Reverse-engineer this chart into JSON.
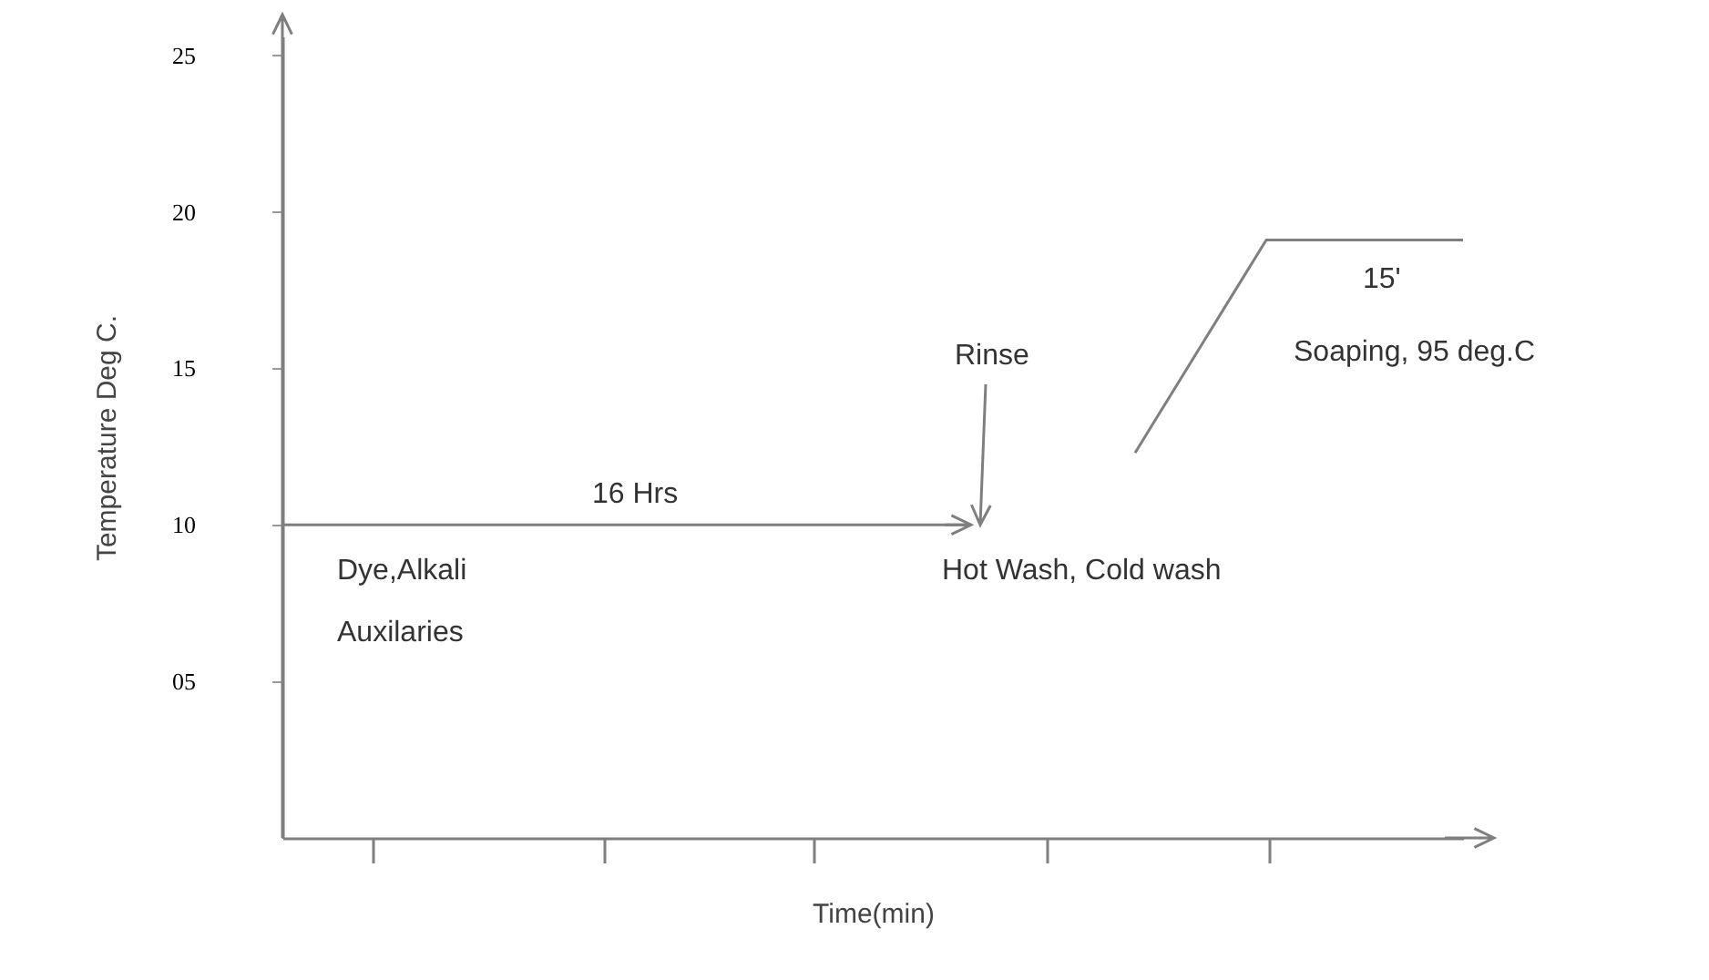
{
  "chart_data": {
    "type": "line",
    "xlabel": "Time(min)",
    "ylabel": "Temperature Deg C.",
    "categories": [
      null,
      null,
      null,
      null,
      null,
      null,
      null,
      null,
      null,
      null,
      null,
      null,
      null,
      null,
      null,
      null,
      null,
      null,
      null,
      null,
      null,
      null,
      null,
      null,
      null,
      null,
      null,
      null,
      null,
      null,
      null,
      null,
      null,
      null,
      null,
      null,
      null
    ],
    "ylim": [
      0,
      25.6
    ],
    "yticks": [
      {
        "value": 5,
        "label": "05"
      },
      10,
      15,
      20,
      25
    ],
    "grid": false,
    "legend": false,
    "marker": "none",
    "line_style": "solid",
    "series": [
      {
        "color": "#7f7f7f",
        "values": [
          10,
          10,
          10,
          10,
          10,
          10,
          10,
          10,
          10,
          10,
          10,
          10,
          10,
          10,
          10,
          10,
          10,
          10,
          10,
          10,
          10,
          10,
          null,
          null,
          null,
          null,
          null,
          null,
          null,
          null,
          null,
          null,
          null,
          null,
          null,
          null,
          null
        ]
      },
      {
        "color": "#7f7f7f",
        "values": [
          null,
          null,
          null,
          null,
          null,
          null,
          null,
          null,
          null,
          null,
          null,
          null,
          null,
          null,
          null,
          null,
          null,
          null,
          null,
          null,
          null,
          null,
          null,
          null,
          null,
          null,
          12.3,
          14,
          15.7,
          17.4,
          19.1,
          19.1,
          19.1,
          19.1,
          19.1,
          19.1,
          19.1
        ]
      }
    ],
    "annotations": [
      "16 Hrs",
      "Dye,Alkali\n Auxilaries",
      "Rinse",
      "Hot Wash, Cold wash",
      "15'",
      "Soaping, 95 deg.C"
    ]
  }
}
